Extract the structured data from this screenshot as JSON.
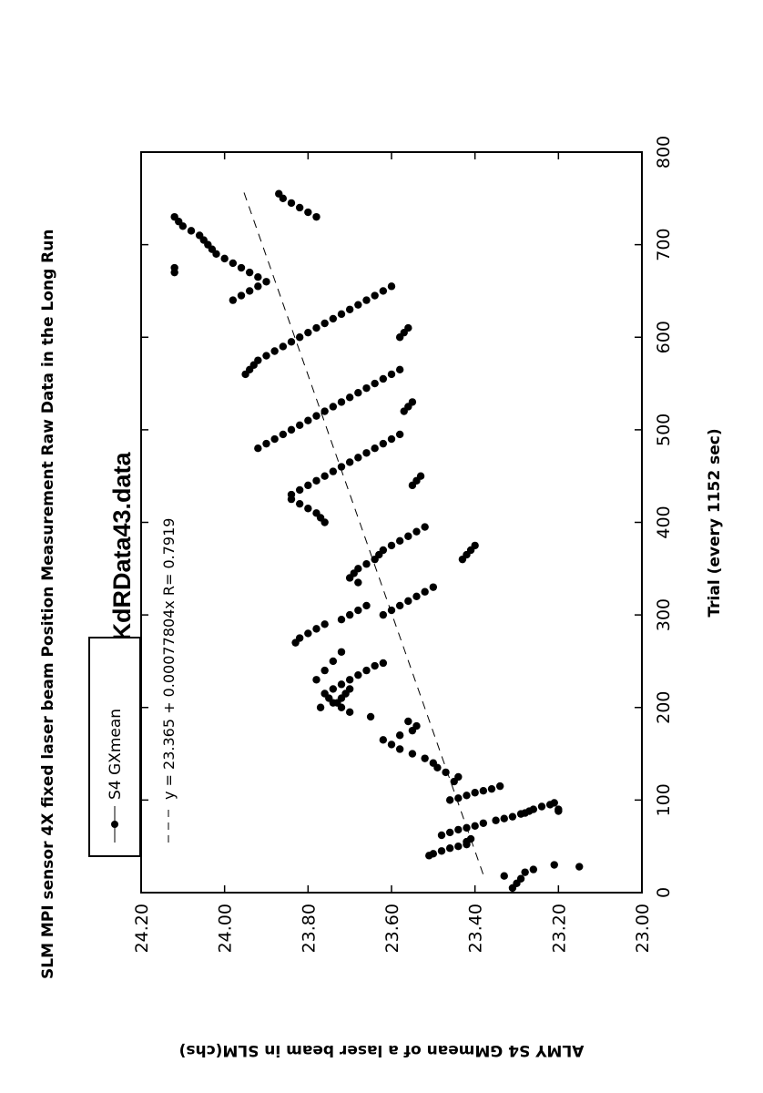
{
  "chart_data": {
    "type": "scatter",
    "title": "SLM MPI sensor 4X fixed laser beam Position Measurement Raw Data in the Long Run",
    "subtitle": "KdRData43.data",
    "xlabel": "Trial (every 1152 sec)",
    "ylabel": "ALMY S4 GMmean of a laser beam in SLM(chs)",
    "xlim": [
      0,
      800
    ],
    "ylim": [
      23.0,
      24.2
    ],
    "x_ticks": [
      "0",
      "100",
      "200",
      "300",
      "400",
      "500",
      "600",
      "700",
      "800"
    ],
    "y_ticks": [
      "23.00",
      "23.20",
      "23.40",
      "23.60",
      "23.80",
      "24.00",
      "24.20"
    ],
    "legend": {
      "placement": "top-left",
      "entries": [
        "S4 GXmean",
        "y = 23.365 + 0.00077804x  R= 0.7919"
      ]
    },
    "fit_line": {
      "intercept": 23.365,
      "slope": 0.00077804,
      "r": 0.7919,
      "label": "y = 23.365 + 0.00077804x  R= 0.7919"
    },
    "series": [
      {
        "name": "S4 GXmean",
        "points": [
          [
            5,
            23.31
          ],
          [
            10,
            23.3
          ],
          [
            15,
            23.29
          ],
          [
            18,
            23.33
          ],
          [
            22,
            23.28
          ],
          [
            25,
            23.26
          ],
          [
            28,
            23.15
          ],
          [
            30,
            23.21
          ],
          [
            40,
            23.51
          ],
          [
            42,
            23.5
          ],
          [
            45,
            23.48
          ],
          [
            48,
            23.46
          ],
          [
            50,
            23.44
          ],
          [
            52,
            23.42
          ],
          [
            55,
            23.42
          ],
          [
            58,
            23.41
          ],
          [
            62,
            23.48
          ],
          [
            65,
            23.46
          ],
          [
            68,
            23.44
          ],
          [
            70,
            23.42
          ],
          [
            72,
            23.4
          ],
          [
            75,
            23.38
          ],
          [
            78,
            23.35
          ],
          [
            80,
            23.33
          ],
          [
            82,
            23.31
          ],
          [
            85,
            23.29
          ],
          [
            88,
            23.27
          ],
          [
            90,
            23.26
          ],
          [
            93,
            23.24
          ],
          [
            95,
            23.22
          ],
          [
            97,
            23.21
          ],
          [
            86,
            23.28
          ],
          [
            88,
            23.2
          ],
          [
            90,
            23.2
          ],
          [
            100,
            23.46
          ],
          [
            102,
            23.44
          ],
          [
            105,
            23.42
          ],
          [
            108,
            23.4
          ],
          [
            110,
            23.38
          ],
          [
            112,
            23.36
          ],
          [
            115,
            23.34
          ],
          [
            120,
            23.45
          ],
          [
            125,
            23.44
          ],
          [
            130,
            23.47
          ],
          [
            135,
            23.49
          ],
          [
            140,
            23.5
          ],
          [
            145,
            23.52
          ],
          [
            150,
            23.55
          ],
          [
            155,
            23.58
          ],
          [
            160,
            23.6
          ],
          [
            165,
            23.62
          ],
          [
            170,
            23.58
          ],
          [
            175,
            23.55
          ],
          [
            180,
            23.54
          ],
          [
            185,
            23.56
          ],
          [
            190,
            23.65
          ],
          [
            195,
            23.7
          ],
          [
            200,
            23.72
          ],
          [
            205,
            23.74
          ],
          [
            210,
            23.75
          ],
          [
            215,
            23.76
          ],
          [
            220,
            23.74
          ],
          [
            225,
            23.72
          ],
          [
            230,
            23.7
          ],
          [
            235,
            23.68
          ],
          [
            240,
            23.66
          ],
          [
            245,
            23.64
          ],
          [
            248,
            23.62
          ],
          [
            200,
            23.77
          ],
          [
            205,
            23.73
          ],
          [
            210,
            23.72
          ],
          [
            215,
            23.71
          ],
          [
            220,
            23.7
          ],
          [
            230,
            23.78
          ],
          [
            240,
            23.76
          ],
          [
            250,
            23.74
          ],
          [
            260,
            23.72
          ],
          [
            270,
            23.83
          ],
          [
            275,
            23.82
          ],
          [
            280,
            23.8
          ],
          [
            285,
            23.78
          ],
          [
            290,
            23.76
          ],
          [
            295,
            23.72
          ],
          [
            300,
            23.7
          ],
          [
            305,
            23.68
          ],
          [
            310,
            23.66
          ],
          [
            300,
            23.62
          ],
          [
            305,
            23.6
          ],
          [
            310,
            23.58
          ],
          [
            315,
            23.56
          ],
          [
            320,
            23.54
          ],
          [
            325,
            23.52
          ],
          [
            330,
            23.5
          ],
          [
            335,
            23.68
          ],
          [
            340,
            23.7
          ],
          [
            345,
            23.69
          ],
          [
            350,
            23.68
          ],
          [
            355,
            23.66
          ],
          [
            360,
            23.64
          ],
          [
            365,
            23.63
          ],
          [
            370,
            23.62
          ],
          [
            375,
            23.6
          ],
          [
            380,
            23.58
          ],
          [
            385,
            23.56
          ],
          [
            390,
            23.54
          ],
          [
            395,
            23.52
          ],
          [
            360,
            23.43
          ],
          [
            365,
            23.42
          ],
          [
            370,
            23.41
          ],
          [
            375,
            23.4
          ],
          [
            400,
            23.76
          ],
          [
            405,
            23.77
          ],
          [
            410,
            23.78
          ],
          [
            415,
            23.8
          ],
          [
            420,
            23.82
          ],
          [
            425,
            23.84
          ],
          [
            430,
            23.84
          ],
          [
            435,
            23.82
          ],
          [
            440,
            23.8
          ],
          [
            445,
            23.78
          ],
          [
            450,
            23.76
          ],
          [
            455,
            23.74
          ],
          [
            460,
            23.72
          ],
          [
            465,
            23.7
          ],
          [
            470,
            23.68
          ],
          [
            475,
            23.66
          ],
          [
            480,
            23.64
          ],
          [
            485,
            23.62
          ],
          [
            490,
            23.6
          ],
          [
            495,
            23.58
          ],
          [
            440,
            23.55
          ],
          [
            445,
            23.54
          ],
          [
            450,
            23.53
          ],
          [
            480,
            23.92
          ],
          [
            485,
            23.9
          ],
          [
            490,
            23.88
          ],
          [
            495,
            23.86
          ],
          [
            500,
            23.84
          ],
          [
            505,
            23.82
          ],
          [
            510,
            23.8
          ],
          [
            515,
            23.78
          ],
          [
            520,
            23.76
          ],
          [
            525,
            23.74
          ],
          [
            530,
            23.72
          ],
          [
            535,
            23.7
          ],
          [
            540,
            23.68
          ],
          [
            545,
            23.66
          ],
          [
            550,
            23.64
          ],
          [
            555,
            23.62
          ],
          [
            560,
            23.6
          ],
          [
            565,
            23.58
          ],
          [
            520,
            23.57
          ],
          [
            525,
            23.56
          ],
          [
            530,
            23.55
          ],
          [
            560,
            23.95
          ],
          [
            565,
            23.94
          ],
          [
            570,
            23.93
          ],
          [
            575,
            23.92
          ],
          [
            580,
            23.9
          ],
          [
            585,
            23.88
          ],
          [
            590,
            23.86
          ],
          [
            595,
            23.84
          ],
          [
            600,
            23.82
          ],
          [
            605,
            23.8
          ],
          [
            610,
            23.78
          ],
          [
            615,
            23.76
          ],
          [
            620,
            23.74
          ],
          [
            625,
            23.72
          ],
          [
            630,
            23.7
          ],
          [
            635,
            23.68
          ],
          [
            640,
            23.66
          ],
          [
            645,
            23.64
          ],
          [
            650,
            23.62
          ],
          [
            655,
            23.6
          ],
          [
            600,
            23.58
          ],
          [
            605,
            23.57
          ],
          [
            610,
            23.56
          ],
          [
            640,
            23.98
          ],
          [
            645,
            23.96
          ],
          [
            650,
            23.94
          ],
          [
            655,
            23.92
          ],
          [
            660,
            23.9
          ],
          [
            665,
            23.92
          ],
          [
            670,
            23.94
          ],
          [
            675,
            23.96
          ],
          [
            680,
            23.98
          ],
          [
            685,
            24.0
          ],
          [
            690,
            24.02
          ],
          [
            695,
            24.03
          ],
          [
            700,
            24.04
          ],
          [
            705,
            24.05
          ],
          [
            710,
            24.06
          ],
          [
            715,
            24.08
          ],
          [
            720,
            24.1
          ],
          [
            725,
            24.11
          ],
          [
            730,
            24.12
          ],
          [
            670,
            24.12
          ],
          [
            675,
            24.12
          ],
          [
            730,
            23.78
          ],
          [
            735,
            23.8
          ],
          [
            740,
            23.82
          ],
          [
            745,
            23.84
          ],
          [
            750,
            23.86
          ],
          [
            755,
            23.87
          ]
        ]
      }
    ]
  }
}
